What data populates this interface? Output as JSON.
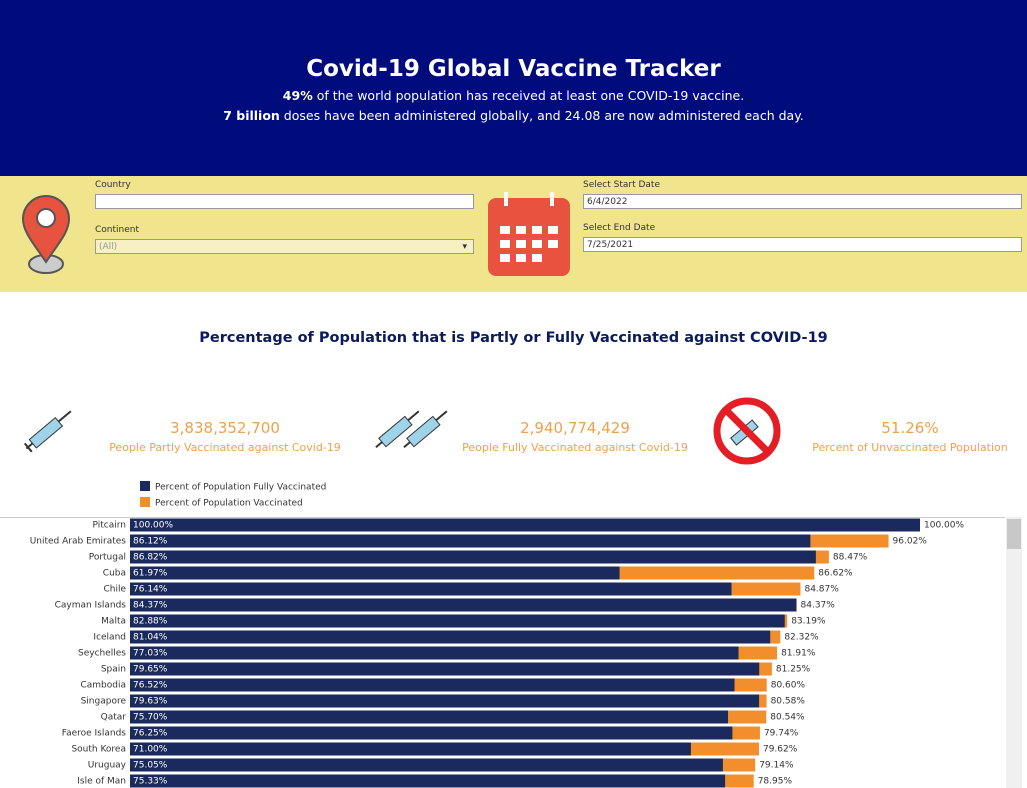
{
  "header": {
    "title": "Covid-19 Global Vaccine Tracker",
    "line1": {
      "bold": "49%",
      "rest": " of the world population has received at least one COVID-19 vaccine."
    },
    "line2": {
      "bold": "7 billion",
      "rest": " doses have been administered globally, and 24.08 are now administered each day."
    }
  },
  "filters": {
    "country": {
      "label": "Country"
    },
    "continent": {
      "label": "Continent",
      "value": "(All)"
    },
    "start_date": {
      "label": "Select Start Date",
      "value": "6/4/2022"
    },
    "end_date": {
      "label": "Select End Date",
      "value": "7/25/2021"
    }
  },
  "kpis": [
    {
      "value": "3,838,352,700",
      "label": "People Partly Vaccinated against Covid-19"
    },
    {
      "value": "2,940,774,429",
      "label": "People Fully Vaccinated against Covid-19"
    },
    {
      "value": "51.26%",
      "label": "Percent of Unvaccinated Population"
    }
  ],
  "chart_data": {
    "type": "overlap-bar",
    "title": "Percentage of Population that is Partly or Fully Vaccinated against COVID-19",
    "categories": [
      "Pitcairn",
      "United Arab Emirates",
      "Portugal",
      "Cuba",
      "Chile",
      "Cayman Islands",
      "Malta",
      "Iceland",
      "Seychelles",
      "Spain",
      "Cambodia",
      "Singapore",
      "Qatar",
      "Faeroe Islands",
      "South Korea",
      "Uruguay",
      "Isle of Man"
    ],
    "xlim": [
      0,
      100
    ],
    "series": [
      {
        "name": "Percent of Population Fully Vaccinated",
        "color": "#1b2a5e",
        "values": [
          100,
          86.12,
          86.82,
          61.97,
          76.14,
          84.37,
          82.88,
          81.04,
          77.03,
          79.65,
          76.52,
          79.63,
          75.7,
          76.25,
          71,
          75.05,
          75.33
        ],
        "value_labels": [
          "100.00%",
          "86.12%",
          "86.82%",
          "61.97%",
          "76.14%",
          "84.37%",
          "82.88%",
          "81.04%",
          "77.03%",
          "79.65%",
          "76.52%",
          "79.63%",
          "75.70%",
          "76.25%",
          "71.00%",
          "75.05%",
          "75.33%"
        ]
      },
      {
        "name": "Percent of Population Vaccinated",
        "color": "#f28e2b",
        "values": [
          100,
          96.02,
          88.47,
          86.62,
          84.87,
          84.37,
          83.19,
          82.32,
          81.91,
          81.25,
          80.6,
          80.58,
          80.54,
          79.74,
          79.62,
          79.14,
          78.95
        ],
        "value_labels": [
          "100.00%",
          "96.02%",
          "88.47%",
          "86.62%",
          "84.87%",
          "84.37%",
          "83.19%",
          "82.32%",
          "81.91%",
          "81.25%",
          "80.60%",
          "80.58%",
          "80.54%",
          "79.74%",
          "79.62%",
          "79.14%",
          "78.95%"
        ]
      }
    ]
  }
}
